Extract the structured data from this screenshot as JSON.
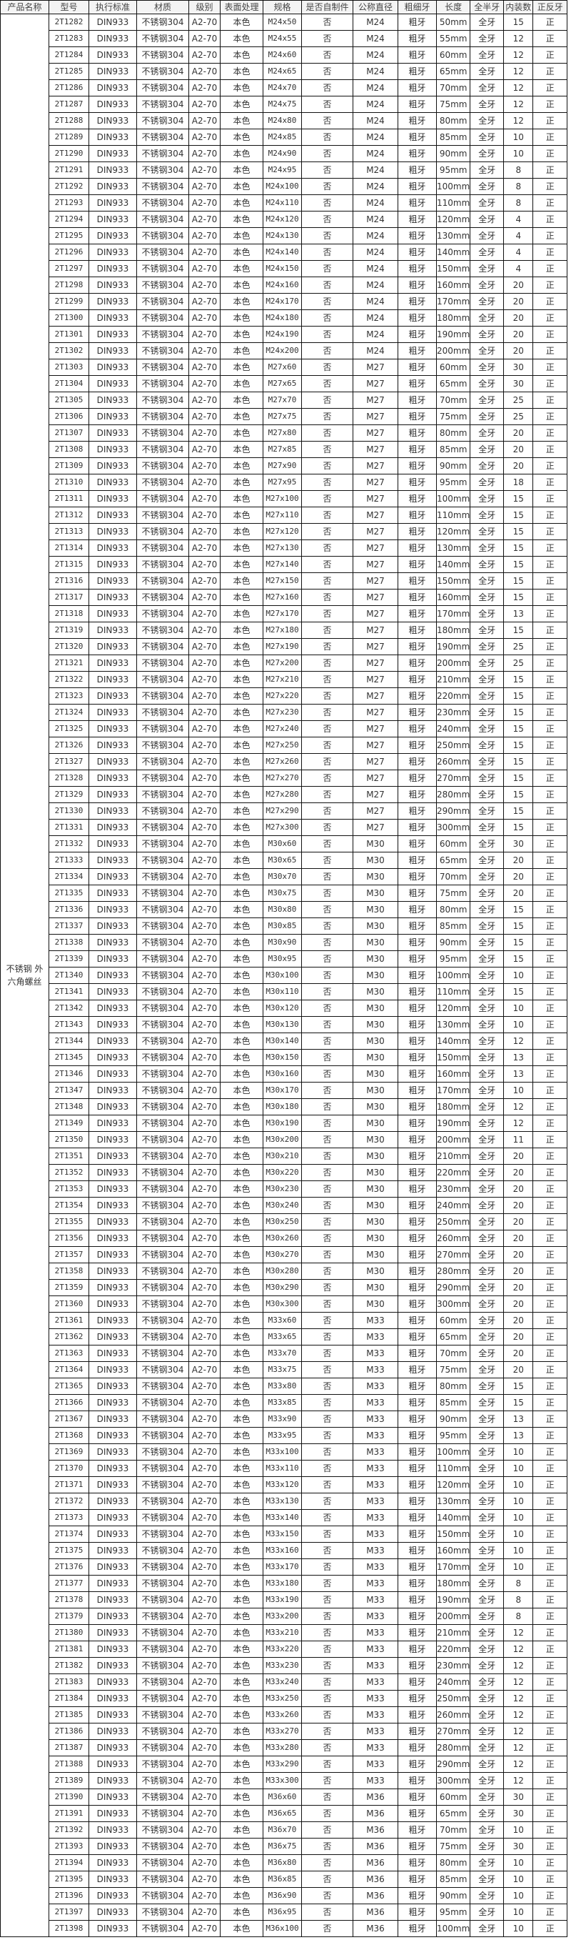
{
  "headers": [
    "产品名称",
    "型号",
    "执行标准",
    "材质",
    "级别",
    "表面处理",
    "规格",
    "是否自制件",
    "公称直径",
    "粗细牙",
    "长度",
    "全半牙",
    "内装数",
    "正反牙"
  ],
  "product_name": "不锈钢 外六角螺丝",
  "constants": {
    "standard": "DIN933",
    "material": "不锈钢304",
    "grade": "A2-70",
    "surface": "本色",
    "self_made": "否",
    "thread_pitch": "粗牙",
    "thread_type": "全牙",
    "direction": "正"
  },
  "rows": [
    [
      "2T1282",
      "M24x50",
      "M24",
      "50mm",
      "15"
    ],
    [
      "2T1283",
      "M24x55",
      "M24",
      "55mm",
      "12"
    ],
    [
      "2T1284",
      "M24x60",
      "M24",
      "60mm",
      "12"
    ],
    [
      "2T1285",
      "M24x65",
      "M24",
      "65mm",
      "12"
    ],
    [
      "2T1286",
      "M24x70",
      "M24",
      "70mm",
      "12"
    ],
    [
      "2T1287",
      "M24x75",
      "M24",
      "75mm",
      "12"
    ],
    [
      "2T1288",
      "M24x80",
      "M24",
      "80mm",
      "12"
    ],
    [
      "2T1289",
      "M24x85",
      "M24",
      "85mm",
      "10"
    ],
    [
      "2T1290",
      "M24x90",
      "M24",
      "90mm",
      "10"
    ],
    [
      "2T1291",
      "M24x95",
      "M24",
      "95mm",
      "8"
    ],
    [
      "2T1292",
      "M24x100",
      "M24",
      "100mm",
      "8"
    ],
    [
      "2T1293",
      "M24x110",
      "M24",
      "110mm",
      "8"
    ],
    [
      "2T1294",
      "M24x120",
      "M24",
      "120mm",
      "4"
    ],
    [
      "2T1295",
      "M24x130",
      "M24",
      "130mm",
      "4"
    ],
    [
      "2T1296",
      "M24x140",
      "M24",
      "140mm",
      "4"
    ],
    [
      "2T1297",
      "M24x150",
      "M24",
      "150mm",
      "4"
    ],
    [
      "2T1298",
      "M24x160",
      "M24",
      "160mm",
      "20"
    ],
    [
      "2T1299",
      "M24x170",
      "M24",
      "170mm",
      "20"
    ],
    [
      "2T1300",
      "M24x180",
      "M24",
      "180mm",
      "20"
    ],
    [
      "2T1301",
      "M24x190",
      "M24",
      "190mm",
      "20"
    ],
    [
      "2T1302",
      "M24x200",
      "M24",
      "200mm",
      "20"
    ],
    [
      "2T1303",
      "M27x60",
      "M27",
      "60mm",
      "30"
    ],
    [
      "2T1304",
      "M27x65",
      "M27",
      "65mm",
      "30"
    ],
    [
      "2T1305",
      "M27x70",
      "M27",
      "70mm",
      "25"
    ],
    [
      "2T1306",
      "M27x75",
      "M27",
      "75mm",
      "25"
    ],
    [
      "2T1307",
      "M27x80",
      "M27",
      "80mm",
      "20"
    ],
    [
      "2T1308",
      "M27x85",
      "M27",
      "85mm",
      "20"
    ],
    [
      "2T1309",
      "M27x90",
      "M27",
      "90mm",
      "20"
    ],
    [
      "2T1310",
      "M27x95",
      "M27",
      "95mm",
      "18"
    ],
    [
      "2T1311",
      "M27x100",
      "M27",
      "100mm",
      "15"
    ],
    [
      "2T1312",
      "M27x110",
      "M27",
      "110mm",
      "15"
    ],
    [
      "2T1313",
      "M27x120",
      "M27",
      "120mm",
      "15"
    ],
    [
      "2T1314",
      "M27x130",
      "M27",
      "130mm",
      "15"
    ],
    [
      "2T1315",
      "M27x140",
      "M27",
      "140mm",
      "15"
    ],
    [
      "2T1316",
      "M27x150",
      "M27",
      "150mm",
      "15"
    ],
    [
      "2T1317",
      "M27x160",
      "M27",
      "160mm",
      "15"
    ],
    [
      "2T1318",
      "M27x170",
      "M27",
      "170mm",
      "13"
    ],
    [
      "2T1319",
      "M27x180",
      "M27",
      "180mm",
      "15"
    ],
    [
      "2T1320",
      "M27x190",
      "M27",
      "190mm",
      "25"
    ],
    [
      "2T1321",
      "M27x200",
      "M27",
      "200mm",
      "25"
    ],
    [
      "2T1322",
      "M27x210",
      "M27",
      "210mm",
      "15"
    ],
    [
      "2T1323",
      "M27x220",
      "M27",
      "220mm",
      "15"
    ],
    [
      "2T1324",
      "M27x230",
      "M27",
      "230mm",
      "15"
    ],
    [
      "2T1325",
      "M27x240",
      "M27",
      "240mm",
      "15"
    ],
    [
      "2T1326",
      "M27x250",
      "M27",
      "250mm",
      "15"
    ],
    [
      "2T1327",
      "M27x260",
      "M27",
      "260mm",
      "15"
    ],
    [
      "2T1328",
      "M27x270",
      "M27",
      "270mm",
      "15"
    ],
    [
      "2T1329",
      "M27x280",
      "M27",
      "280mm",
      "15"
    ],
    [
      "2T1330",
      "M27x290",
      "M27",
      "290mm",
      "15"
    ],
    [
      "2T1331",
      "M27x300",
      "M27",
      "300mm",
      "15"
    ],
    [
      "2T1332",
      "M30x60",
      "M30",
      "60mm",
      "30"
    ],
    [
      "2T1333",
      "M30x65",
      "M30",
      "65mm",
      "20"
    ],
    [
      "2T1334",
      "M30x70",
      "M30",
      "70mm",
      "20"
    ],
    [
      "2T1335",
      "M30x75",
      "M30",
      "75mm",
      "20"
    ],
    [
      "2T1336",
      "M30x80",
      "M30",
      "80mm",
      "15"
    ],
    [
      "2T1337",
      "M30x85",
      "M30",
      "85mm",
      "15"
    ],
    [
      "2T1338",
      "M30x90",
      "M30",
      "90mm",
      "15"
    ],
    [
      "2T1339",
      "M30x95",
      "M30",
      "95mm",
      "15"
    ],
    [
      "2T1340",
      "M30x100",
      "M30",
      "100mm",
      "10"
    ],
    [
      "2T1341",
      "M30x110",
      "M30",
      "110mm",
      "15"
    ],
    [
      "2T1342",
      "M30x120",
      "M30",
      "120mm",
      "10"
    ],
    [
      "2T1343",
      "M30x130",
      "M30",
      "130mm",
      "10"
    ],
    [
      "2T1344",
      "M30x140",
      "M30",
      "140mm",
      "12"
    ],
    [
      "2T1345",
      "M30x150",
      "M30",
      "150mm",
      "13"
    ],
    [
      "2T1346",
      "M30x160",
      "M30",
      "160mm",
      "13"
    ],
    [
      "2T1347",
      "M30x170",
      "M30",
      "170mm",
      "10"
    ],
    [
      "2T1348",
      "M30x180",
      "M30",
      "180mm",
      "12"
    ],
    [
      "2T1349",
      "M30x190",
      "M30",
      "190mm",
      "12"
    ],
    [
      "2T1350",
      "M30x200",
      "M30",
      "200mm",
      "11"
    ],
    [
      "2T1351",
      "M30x210",
      "M30",
      "210mm",
      "20"
    ],
    [
      "2T1352",
      "M30x220",
      "M30",
      "220mm",
      "20"
    ],
    [
      "2T1353",
      "M30x230",
      "M30",
      "230mm",
      "20"
    ],
    [
      "2T1354",
      "M30x240",
      "M30",
      "240mm",
      "20"
    ],
    [
      "2T1355",
      "M30x250",
      "M30",
      "250mm",
      "20"
    ],
    [
      "2T1356",
      "M30x260",
      "M30",
      "260mm",
      "20"
    ],
    [
      "2T1357",
      "M30x270",
      "M30",
      "270mm",
      "20"
    ],
    [
      "2T1358",
      "M30x280",
      "M30",
      "280mm",
      "20"
    ],
    [
      "2T1359",
      "M30x290",
      "M30",
      "290mm",
      "20"
    ],
    [
      "2T1360",
      "M30x300",
      "M30",
      "300mm",
      "20"
    ],
    [
      "2T1361",
      "M33x60",
      "M33",
      "60mm",
      "20"
    ],
    [
      "2T1362",
      "M33x65",
      "M33",
      "65mm",
      "20"
    ],
    [
      "2T1363",
      "M33x70",
      "M33",
      "70mm",
      "20"
    ],
    [
      "2T1364",
      "M33x75",
      "M33",
      "75mm",
      "20"
    ],
    [
      "2T1365",
      "M33x80",
      "M33",
      "80mm",
      "15"
    ],
    [
      "2T1366",
      "M33x85",
      "M33",
      "85mm",
      "15"
    ],
    [
      "2T1367",
      "M33x90",
      "M33",
      "90mm",
      "13"
    ],
    [
      "2T1368",
      "M33x95",
      "M33",
      "95mm",
      "13"
    ],
    [
      "2T1369",
      "M33x100",
      "M33",
      "100mm",
      "10"
    ],
    [
      "2T1370",
      "M33x110",
      "M33",
      "110mm",
      "10"
    ],
    [
      "2T1371",
      "M33x120",
      "M33",
      "120mm",
      "10"
    ],
    [
      "2T1372",
      "M33x130",
      "M33",
      "130mm",
      "10"
    ],
    [
      "2T1373",
      "M33x140",
      "M33",
      "140mm",
      "10"
    ],
    [
      "2T1374",
      "M33x150",
      "M33",
      "150mm",
      "10"
    ],
    [
      "2T1375",
      "M33x160",
      "M33",
      "160mm",
      "10"
    ],
    [
      "2T1376",
      "M33x170",
      "M33",
      "170mm",
      "10"
    ],
    [
      "2T1377",
      "M33x180",
      "M33",
      "180mm",
      "8"
    ],
    [
      "2T1378",
      "M33x190",
      "M33",
      "190mm",
      "8"
    ],
    [
      "2T1379",
      "M33x200",
      "M33",
      "200mm",
      "8"
    ],
    [
      "2T1380",
      "M33x210",
      "M33",
      "210mm",
      "12"
    ],
    [
      "2T1381",
      "M33x220",
      "M33",
      "220mm",
      "12"
    ],
    [
      "2T1382",
      "M33x230",
      "M33",
      "230mm",
      "12"
    ],
    [
      "2T1383",
      "M33x240",
      "M33",
      "240mm",
      "12"
    ],
    [
      "2T1384",
      "M33x250",
      "M33",
      "250mm",
      "12"
    ],
    [
      "2T1385",
      "M33x260",
      "M33",
      "260mm",
      "12"
    ],
    [
      "2T1386",
      "M33x270",
      "M33",
      "270mm",
      "12"
    ],
    [
      "2T1387",
      "M33x280",
      "M33",
      "280mm",
      "12"
    ],
    [
      "2T1388",
      "M33x290",
      "M33",
      "290mm",
      "12"
    ],
    [
      "2T1389",
      "M33x300",
      "M33",
      "300mm",
      "12"
    ],
    [
      "2T1390",
      "M36x60",
      "M36",
      "60mm",
      "30"
    ],
    [
      "2T1391",
      "M36x65",
      "M36",
      "65mm",
      "30"
    ],
    [
      "2T1392",
      "M36x70",
      "M36",
      "70mm",
      "10"
    ],
    [
      "2T1393",
      "M36x75",
      "M36",
      "75mm",
      "30"
    ],
    [
      "2T1394",
      "M36x80",
      "M36",
      "80mm",
      "10"
    ],
    [
      "2T1395",
      "M36x85",
      "M36",
      "85mm",
      "10"
    ],
    [
      "2T1396",
      "M36x90",
      "M36",
      "90mm",
      "10"
    ],
    [
      "2T1397",
      "M36x95",
      "M36",
      "95mm",
      "10"
    ],
    [
      "2T1398",
      "M36x100",
      "M36",
      "100mm",
      "10"
    ]
  ]
}
